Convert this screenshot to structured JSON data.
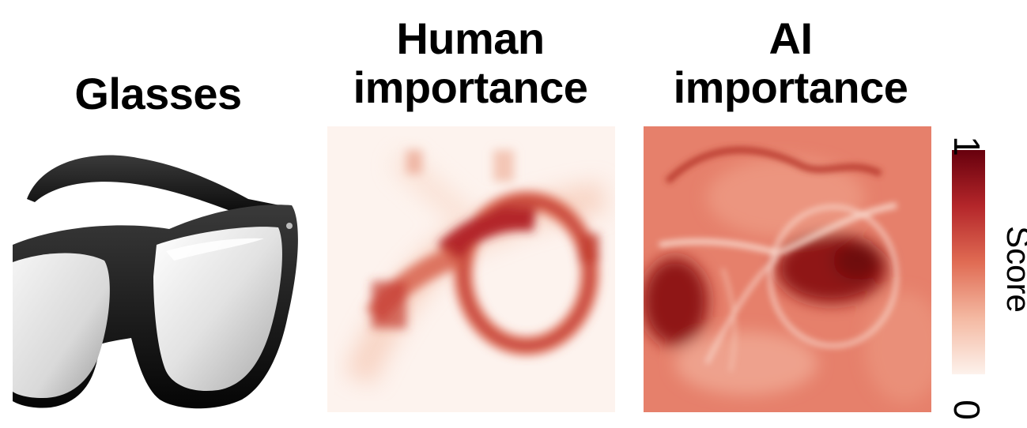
{
  "titles": {
    "photo": "Glasses",
    "human_line1": "Human",
    "human_line2": "importance",
    "ai_line1": "AI",
    "ai_line2": "importance"
  },
  "colorbar": {
    "label": "Score",
    "max": "1",
    "min": "0",
    "colors": [
      "#fdf2ec",
      "#f4b9a2",
      "#e06b53",
      "#b4262a",
      "#67000d"
    ]
  },
  "panels": {
    "photo_icon": "eyeglasses-photo",
    "human_map_icon": "human-heatmap",
    "ai_map_icon": "ai-heatmap"
  }
}
